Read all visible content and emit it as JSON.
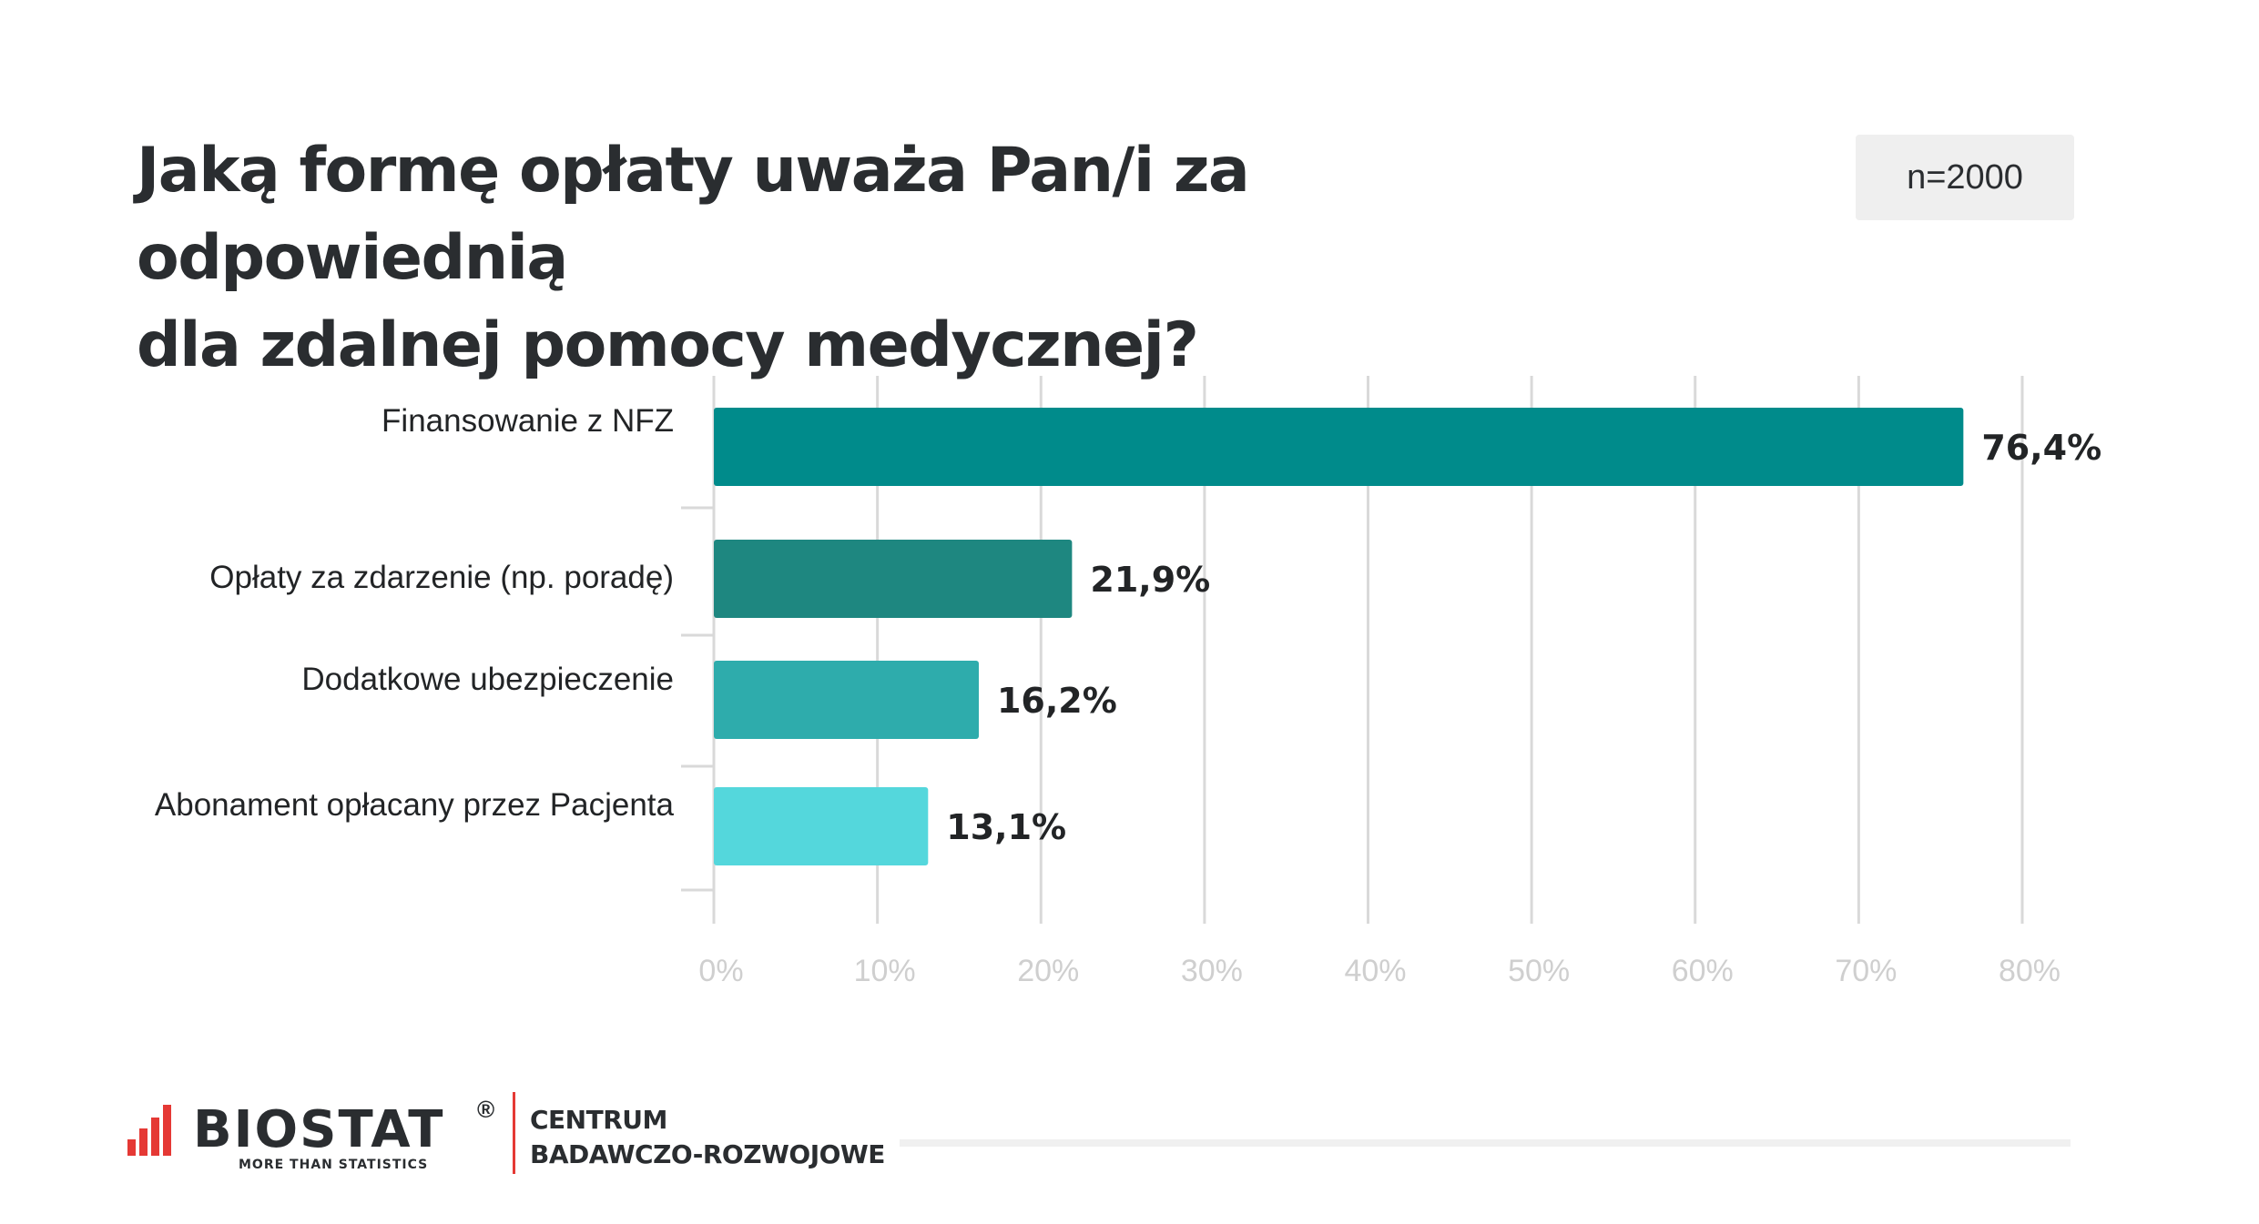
{
  "title": {
    "line1": "Jaką formę opłaty uważa Pan/i za odpowiednią",
    "line2": "dla zdalnej pomocy medycznej?"
  },
  "sample_size": "n=2000",
  "footer": {
    "brand": "BIOSTAT",
    "registered": "®",
    "tagline": "MORE THAN STATISTICS",
    "unit_line1": "CENTRUM",
    "unit_line2": "BADAWCZO-ROZWOJOWE"
  },
  "colors": {
    "bar1": "#008b8b",
    "bar2": "#1e8780",
    "bar3": "#2eacac",
    "bar4": "#54d7dc",
    "grid": "#d9d9d9",
    "tick_label": "#cfcfcf",
    "logo_red": "#e53935"
  },
  "chart_data": {
    "type": "bar",
    "orientation": "horizontal",
    "categories": [
      "Finansowanie z NFZ",
      "Opłaty za zdarzenie (np. poradę)",
      "Dodatkowe ubezpieczenie",
      "Abonament opłacany przez Pacjenta"
    ],
    "values": [
      76.4,
      21.9,
      16.2,
      13.1
    ],
    "value_labels": [
      "76,4%",
      "21,9%",
      "16,2%",
      "13,1%"
    ],
    "xlim": [
      0,
      80
    ],
    "x_ticks": [
      0,
      10,
      20,
      30,
      40,
      50,
      60,
      70,
      80
    ],
    "x_tick_labels": [
      "0%",
      "10%",
      "20%",
      "30%",
      "40%",
      "50%",
      "60%",
      "70%",
      "80%"
    ],
    "grid": true,
    "legend": "none"
  }
}
